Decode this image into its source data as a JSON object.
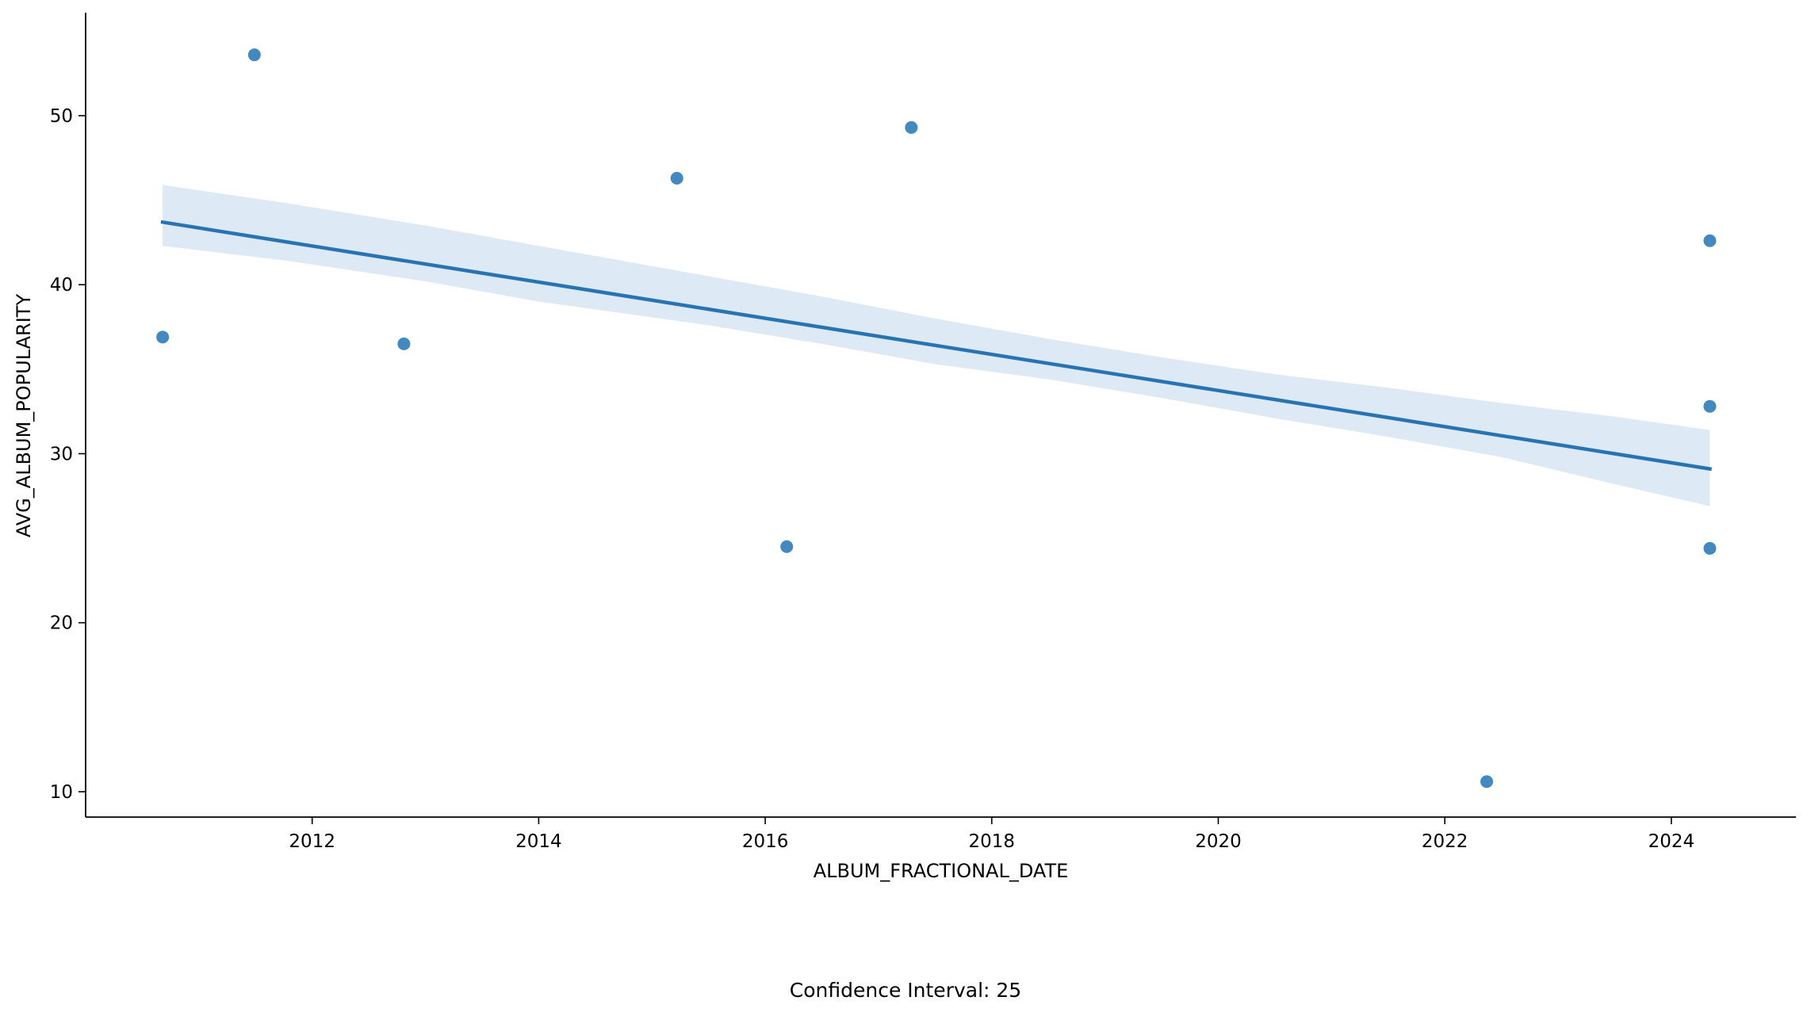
{
  "chart_data": {
    "type": "scatter",
    "title": "",
    "xlabel": "ALBUM_FRACTIONAL_DATE",
    "ylabel": "AVG_ALBUM_POPULARITY",
    "xlim": [
      2010.0,
      2025.1
    ],
    "ylim": [
      8.5,
      56.0
    ],
    "x_ticks": [
      2012,
      2014,
      2016,
      2018,
      2020,
      2022,
      2024
    ],
    "y_ticks": [
      10,
      20,
      30,
      40,
      50
    ],
    "grid": false,
    "point_color": "#3a82bd",
    "line_color": "#2674b4",
    "band_color": "#dde9f4",
    "points": [
      {
        "x": 2010.68,
        "y": 36.9
      },
      {
        "x": 2011.49,
        "y": 53.6
      },
      {
        "x": 2012.81,
        "y": 36.5
      },
      {
        "x": 2015.22,
        "y": 46.3
      },
      {
        "x": 2016.19,
        "y": 24.5
      },
      {
        "x": 2017.29,
        "y": 49.3
      },
      {
        "x": 2022.37,
        "y": 10.6
      },
      {
        "x": 2024.34,
        "y": 42.6
      },
      {
        "x": 2024.34,
        "y": 32.8
      },
      {
        "x": 2024.34,
        "y": 24.4
      }
    ],
    "regression": {
      "x": [
        2010.68,
        2024.34
      ],
      "y": [
        43.7,
        29.1
      ]
    },
    "confidence_band": {
      "x": [
        2010.68,
        2011.8,
        2013,
        2014,
        2015.5,
        2016.5,
        2017.5,
        2018.5,
        2019.5,
        2020.5,
        2021.5,
        2022.5,
        2023.5,
        2024.34
      ],
      "upper": [
        45.9,
        44.8,
        43.5,
        42.3,
        40.5,
        39.3,
        38.0,
        36.8,
        35.7,
        34.7,
        33.9,
        33.0,
        32.2,
        31.4
      ],
      "lower": [
        42.3,
        41.4,
        40.2,
        39.0,
        37.6,
        36.5,
        35.3,
        34.4,
        33.3,
        32.1,
        31.0,
        29.8,
        28.2,
        26.9
      ]
    }
  },
  "caption": "Confidence Interval: 25"
}
